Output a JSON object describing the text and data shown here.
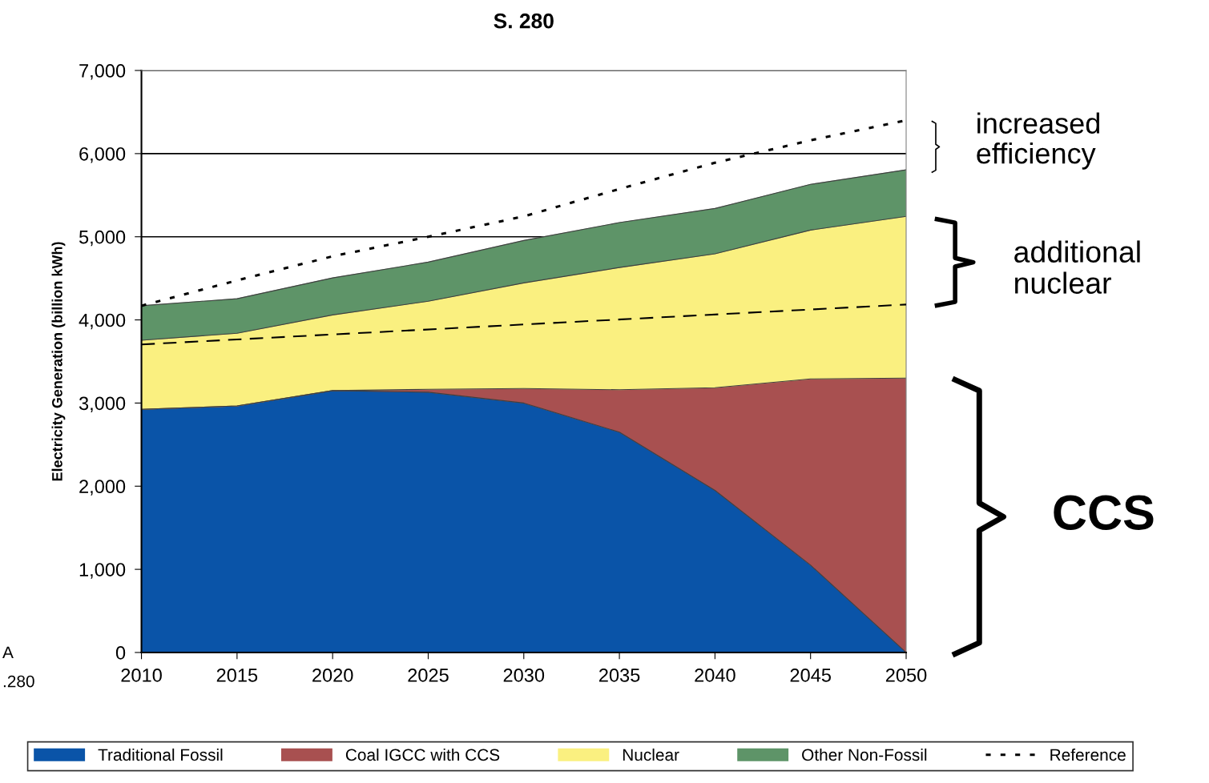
{
  "chart_data": {
    "type": "area",
    "title": "S. 280",
    "ylabel": "Electricity Generation (billion kWh)",
    "x": [
      2010,
      2015,
      2020,
      2025,
      2030,
      2035,
      2040,
      2045,
      2050
    ],
    "stacked": true,
    "series": [
      {
        "name": "Traditional Fossil",
        "color": "#0a54a8",
        "values": [
          2925,
          2965,
          3150,
          3130,
          3000,
          2650,
          1950,
          1050,
          0
        ]
      },
      {
        "name": "Coal IGCC with CCS",
        "color": "#a85050",
        "values": [
          0,
          0,
          0,
          35,
          175,
          510,
          1235,
          2240,
          3300
        ]
      },
      {
        "name": "Nuclear",
        "color": "#faf080",
        "values": [
          830,
          875,
          910,
          1060,
          1270,
          1470,
          1610,
          1790,
          1945
        ]
      },
      {
        "name": "Other Non-Fossil",
        "color": "#5e9468",
        "values": [
          415,
          415,
          445,
          470,
          510,
          540,
          545,
          550,
          560
        ]
      },
      {
        "name": "Reference",
        "type": "line",
        "line_style": "dotted",
        "color": "#000000",
        "values": [
          4170,
          4475,
          4765,
          5000,
          5245,
          5575,
          5890,
          6160,
          6400
        ]
      },
      {
        "type": "line",
        "line_style": "dashed",
        "color": "#000000",
        "x": [
          2010,
          2050
        ],
        "values": [
          3705,
          4185
        ]
      }
    ],
    "xlim": [
      2010,
      2050
    ],
    "xticks": [
      2010,
      2015,
      2020,
      2025,
      2030,
      2035,
      2040,
      2045,
      2050
    ],
    "ylim": [
      0,
      7000
    ],
    "yticks": [
      {
        "value": 0,
        "label": "0"
      },
      {
        "value": 1000,
        "label": "1,000"
      },
      {
        "value": 2000,
        "label": "2,000"
      },
      {
        "value": 3000,
        "label": "3,000"
      },
      {
        "value": 4000,
        "label": "4,000"
      },
      {
        "value": 5000,
        "label": "5,000"
      },
      {
        "value": 6000,
        "label": "6,000"
      },
      {
        "value": 7000,
        "label": "7,000"
      }
    ],
    "grid": "y",
    "legend": "bottom",
    "annotations": [
      "increased\nefficiency",
      "additional\nnuclear",
      "CCS",
      "A",
      ".280"
    ]
  }
}
